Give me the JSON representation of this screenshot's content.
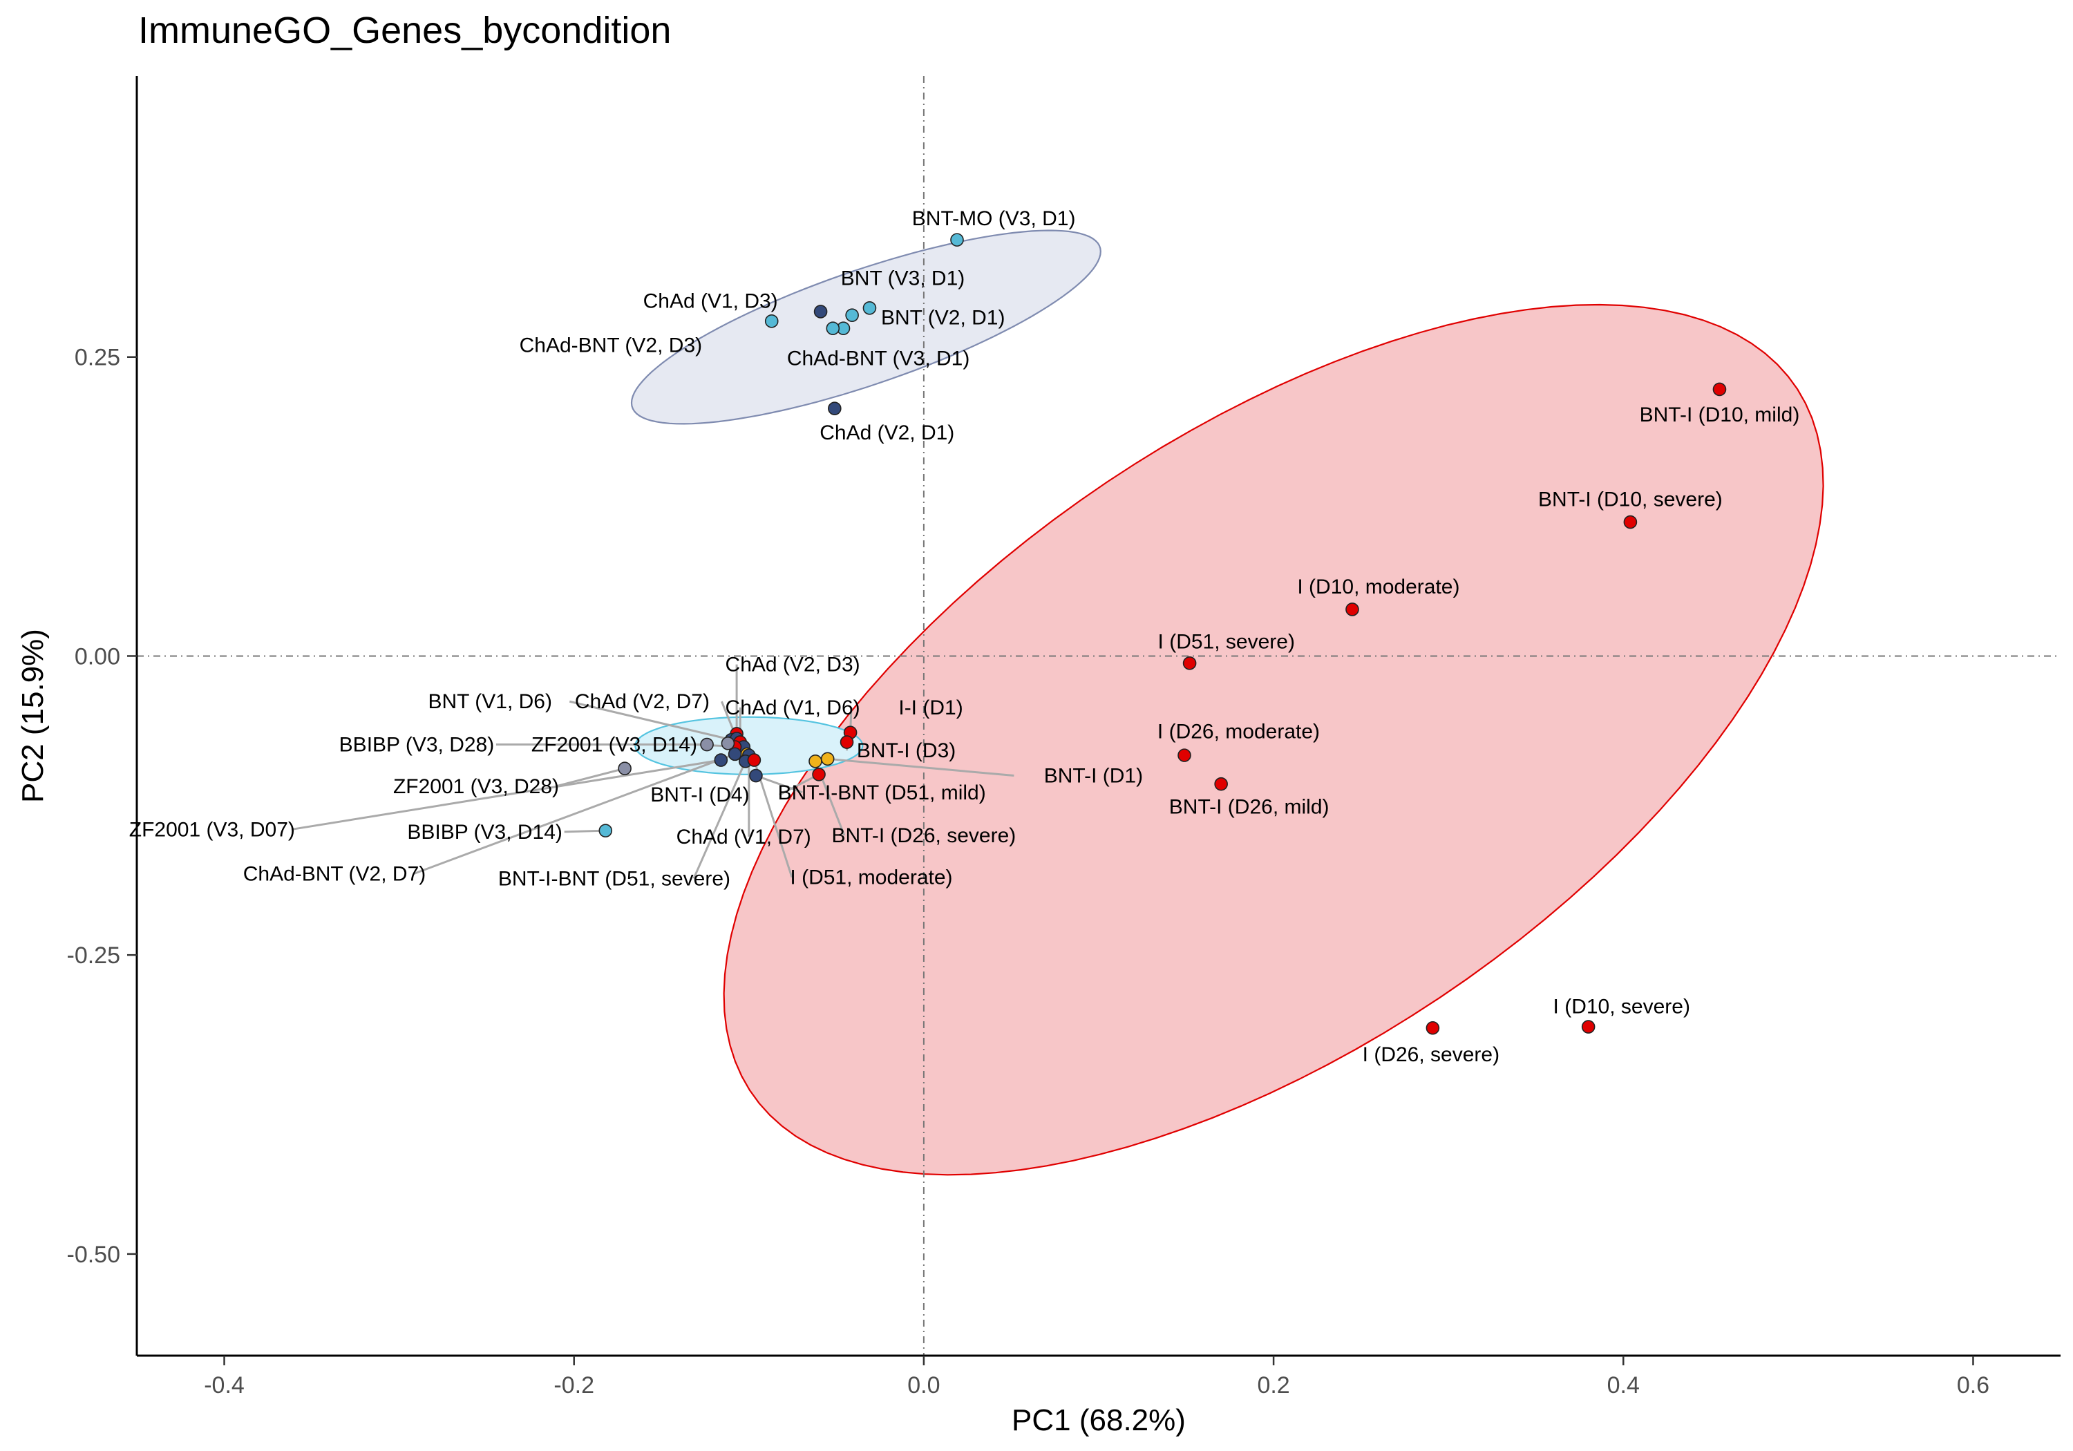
{
  "chart_data": {
    "type": "scatter",
    "title": "ImmuneGO_Genes_bycondition",
    "xlabel": "PC1 (68.2%)",
    "ylabel": "PC2 (15.9%)",
    "xlim": [
      -0.45,
      0.65
    ],
    "ylim": [
      -0.585,
      0.485
    ],
    "x_ticks": [
      -0.4,
      -0.2,
      0.0,
      0.2,
      0.4,
      0.6
    ],
    "x_tick_labels": [
      "-0.4",
      "-0.2",
      "0.0",
      "0.2",
      "0.4",
      "0.6"
    ],
    "y_ticks": [
      -0.5,
      -0.25,
      0.0,
      0.25
    ],
    "y_tick_labels": [
      "-0.50",
      "-0.25",
      "0.00",
      "0.25"
    ],
    "grid": false,
    "reference_lines": {
      "x": 0,
      "y": 0,
      "style": "dot-dash"
    },
    "colors": {
      "red": "#e00000",
      "light_blue": "#55b9d6",
      "navy": "#33497a",
      "orange": "#f0b21a",
      "grey": "#8a8fa6",
      "ellipse_red_fill": "#f7c6c8",
      "ellipse_red_stroke": "#e00000",
      "ellipse_navy_fill": "#e6e9f2",
      "ellipse_navy_stroke": "#7f8bb0",
      "ellipse_cyan_fill": "#d9f2fa",
      "ellipse_cyan_stroke": "#55c4e0",
      "leader_line": "#aaaaaa"
    },
    "ellipses": [
      {
        "color": "red",
        "center": [
          0.2,
          -0.07
        ],
        "semi_axes": [
          0.43,
          0.215
        ],
        "angle_deg": 52
      },
      {
        "color": "navy",
        "center": [
          -0.033,
          0.275
        ],
        "semi_axes": [
          0.15,
          0.045
        ],
        "angle_deg": 28
      },
      {
        "color": "cyan",
        "center": [
          -0.1,
          -0.075
        ],
        "semi_axes": [
          0.065,
          0.024
        ],
        "angle_deg": 0
      }
    ],
    "points": [
      {
        "label": "BNT-MO (V3, D1)",
        "x": 0.019,
        "y": 0.348,
        "color": "light_blue",
        "lx": 0.04,
        "ly": 0.366
      },
      {
        "label": "BNT (V3, D1)",
        "x": -0.031,
        "y": 0.291,
        "color": "light_blue",
        "lx": -0.012,
        "ly": 0.316
      },
      {
        "label": "ChAd (V1, D3)",
        "x": -0.087,
        "y": 0.28,
        "color": "light_blue",
        "lx": -0.122,
        "ly": 0.297
      },
      {
        "label": "BNT (V2, D1)",
        "x": -0.041,
        "y": 0.285,
        "color": "light_blue",
        "lx": 0.011,
        "ly": 0.283
      },
      {
        "label": "",
        "x": -0.059,
        "y": 0.288,
        "color": "navy"
      },
      {
        "label": "ChAd-BNT (V2, D3)",
        "x": -0.046,
        "y": 0.274,
        "color": "light_blue",
        "lx": -0.179,
        "ly": 0.26
      },
      {
        "label": "ChAd-BNT (V3, D1)",
        "x": -0.052,
        "y": 0.274,
        "color": "light_blue",
        "lx": -0.026,
        "ly": 0.249
      },
      {
        "label": "ChAd (V2, D1)",
        "x": -0.051,
        "y": 0.207,
        "color": "navy",
        "lx": -0.021,
        "ly": 0.187
      },
      {
        "label": "BNT-I (D10, mild)",
        "x": 0.455,
        "y": 0.223,
        "color": "red",
        "lx": 0.455,
        "ly": 0.202
      },
      {
        "label": "BNT-I (D10, severe)",
        "x": 0.404,
        "y": 0.112,
        "color": "red",
        "lx": 0.404,
        "ly": 0.131
      },
      {
        "label": "I (D10, moderate)",
        "x": 0.245,
        "y": 0.039,
        "color": "red",
        "lx": 0.26,
        "ly": 0.058
      },
      {
        "label": "I (D51, severe)",
        "x": 0.152,
        "y": -0.006,
        "color": "red",
        "lx": 0.173,
        "ly": 0.012
      },
      {
        "label": "I (D26, moderate)",
        "x": 0.149,
        "y": -0.083,
        "color": "red",
        "lx": 0.18,
        "ly": -0.063
      },
      {
        "label": "BNT-I (D26, mild)",
        "x": 0.17,
        "y": -0.107,
        "color": "red",
        "lx": 0.186,
        "ly": -0.126
      },
      {
        "label": "I (D10, severe)",
        "x": 0.38,
        "y": -0.31,
        "color": "red",
        "lx": 0.399,
        "ly": -0.293
      },
      {
        "label": "I (D26, severe)",
        "x": 0.291,
        "y": -0.311,
        "color": "red",
        "lx": 0.29,
        "ly": -0.333
      },
      {
        "label": "ChAd (V2, D3)",
        "x": -0.107,
        "y": -0.065,
        "color": "red",
        "lx": -0.075,
        "ly": -0.007,
        "leader": true
      },
      {
        "label": "BNT (V1, D6)",
        "x": -0.11,
        "y": -0.07,
        "color": "navy",
        "lx": -0.248,
        "ly": -0.038,
        "leader": true
      },
      {
        "label": "ChAd (V2, D7)",
        "x": -0.107,
        "y": -0.069,
        "color": "navy",
        "lx": -0.161,
        "ly": -0.038,
        "leader": true
      },
      {
        "label": "ChAd (V1, D6)",
        "x": -0.105,
        "y": -0.072,
        "color": "red",
        "lx": -0.075,
        "ly": -0.043,
        "leader": true
      },
      {
        "label": "I-I (D1)",
        "x": -0.042,
        "y": -0.064,
        "color": "red",
        "lx": 0.004,
        "ly": -0.043,
        "leader": true
      },
      {
        "label": "BNT-I (D3)",
        "x": -0.044,
        "y": -0.072,
        "color": "red",
        "lx": -0.01,
        "ly": -0.079,
        "leader": true
      },
      {
        "label": "BBIBP (V3, D28)",
        "x": -0.124,
        "y": -0.074,
        "color": "grey",
        "lx": -0.29,
        "ly": -0.074,
        "leader": true
      },
      {
        "label": "ZF2001 (V3, D14)",
        "x": -0.103,
        "y": -0.076,
        "color": "navy",
        "lx": -0.177,
        "ly": -0.074,
        "leader": true
      },
      {
        "label": "",
        "x": -0.108,
        "y": -0.076,
        "color": "red"
      },
      {
        "label": "",
        "x": -0.112,
        "y": -0.073,
        "color": "grey"
      },
      {
        "label": "",
        "x": -0.101,
        "y": -0.082,
        "color": "orange"
      },
      {
        "label": "BNT-I (D1)",
        "x": -0.055,
        "y": -0.086,
        "color": "orange",
        "lx": 0.097,
        "ly": -0.1,
        "leader": true
      },
      {
        "label": "ZF2001 (V3, D28)",
        "x": -0.171,
        "y": -0.094,
        "color": "grey",
        "lx": -0.256,
        "ly": -0.109,
        "leader": true
      },
      {
        "label": "BNT-I (D4)",
        "x": -0.06,
        "y": -0.099,
        "color": "red",
        "lx": -0.128,
        "ly": -0.116,
        "leader": true
      },
      {
        "label": "BNT-I-BNT (D51, mild)",
        "x": -0.096,
        "y": -0.1,
        "color": "navy",
        "lx": -0.024,
        "ly": -0.114,
        "leader": true
      },
      {
        "label": "ZF2001 (V3, D07)",
        "x": -0.116,
        "y": -0.087,
        "color": "navy",
        "lx": -0.407,
        "ly": -0.145,
        "leader": true
      },
      {
        "label": "BBIBP (V3, D14)",
        "x": -0.182,
        "y": -0.146,
        "color": "light_blue",
        "lx": -0.251,
        "ly": -0.147,
        "leader": true
      },
      {
        "label": "ChAd (V1, D7)",
        "x": -0.1,
        "y": -0.083,
        "color": "navy",
        "lx": -0.103,
        "ly": -0.151,
        "leader": true
      },
      {
        "label": "BNT-I (D26, severe)",
        "x": -0.062,
        "y": -0.088,
        "color": "orange",
        "lx": 0.0,
        "ly": -0.15,
        "leader": true
      },
      {
        "label": "ChAd-BNT (V2, D7)",
        "x": -0.108,
        "y": -0.082,
        "color": "navy",
        "lx": -0.337,
        "ly": -0.182,
        "leader": true
      },
      {
        "label": "BNT-I-BNT (D51, severe)",
        "x": -0.102,
        "y": -0.088,
        "color": "navy",
        "lx": -0.177,
        "ly": -0.186,
        "leader": true
      },
      {
        "label": "I (D51, moderate)",
        "x": -0.097,
        "y": -0.087,
        "color": "red",
        "lx": -0.03,
        "ly": -0.185,
        "leader": true
      }
    ]
  }
}
